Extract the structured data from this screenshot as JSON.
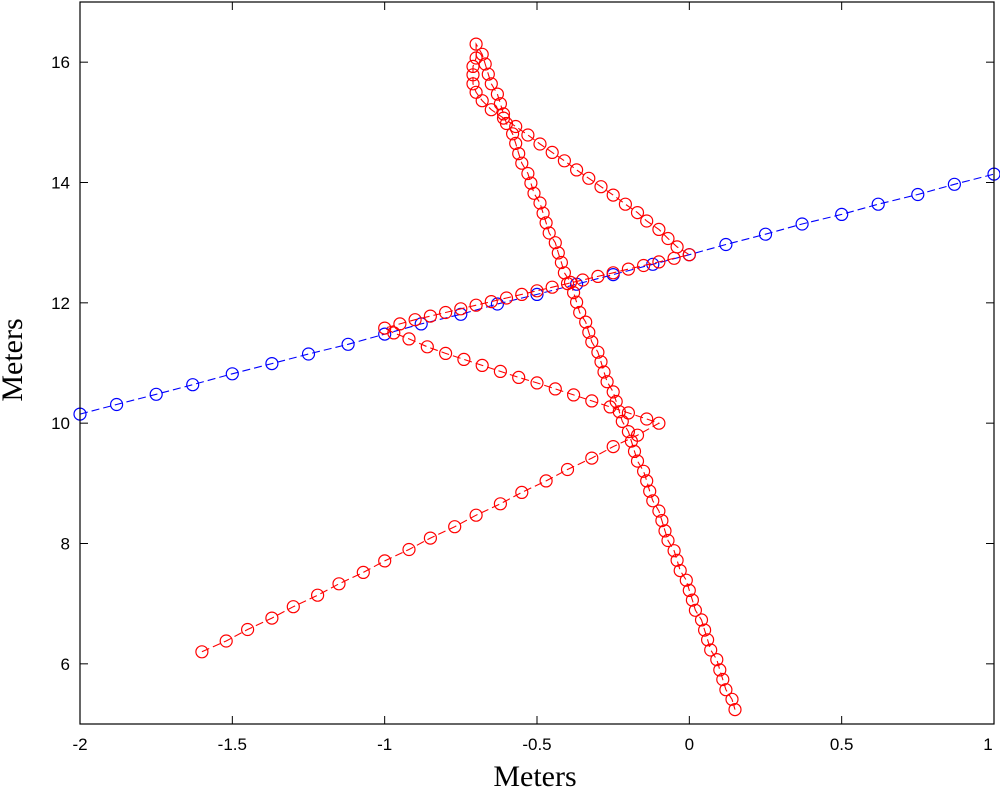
{
  "chart_data": {
    "type": "line",
    "title": "",
    "xlabel": "Meters",
    "ylabel": "Meters",
    "xlim": [
      -2,
      1
    ],
    "ylim": [
      5,
      17
    ],
    "xticks": [
      -2,
      -1.5,
      -1,
      -0.5,
      0,
      0.5,
      1
    ],
    "xtick_labels": [
      "-2",
      "-1.5",
      "-1",
      "-0.5",
      "0",
      "0.5",
      "1"
    ],
    "yticks": [
      6,
      8,
      10,
      12,
      14,
      16
    ],
    "ytick_labels": [
      "6",
      "8",
      "10",
      "12",
      "14",
      "16"
    ],
    "grid": false,
    "series": [
      {
        "color": "#0000ff",
        "marker": "circle",
        "linestyle": "dashed",
        "points": [
          [
            -2.0,
            10.15
          ],
          [
            -1.88,
            10.31
          ],
          [
            -1.75,
            10.48
          ],
          [
            -1.63,
            10.64
          ],
          [
            -1.5,
            10.82
          ],
          [
            -1.37,
            10.99
          ],
          [
            -1.25,
            11.15
          ],
          [
            -1.12,
            11.31
          ],
          [
            -1.0,
            11.48
          ],
          [
            -0.88,
            11.65
          ],
          [
            -0.75,
            11.81
          ],
          [
            -0.63,
            11.98
          ],
          [
            -0.5,
            12.14
          ],
          [
            -0.37,
            12.31
          ],
          [
            -0.25,
            12.47
          ],
          [
            -0.12,
            12.64
          ],
          [
            0.0,
            12.8
          ],
          [
            0.12,
            12.97
          ],
          [
            0.25,
            13.14
          ],
          [
            0.37,
            13.31
          ],
          [
            0.5,
            13.47
          ],
          [
            0.62,
            13.64
          ],
          [
            0.75,
            13.8
          ],
          [
            0.87,
            13.97
          ],
          [
            1.0,
            14.14
          ]
        ]
      },
      {
        "color": "#ff0000",
        "marker": "circle",
        "linestyle": "dashed",
        "points": [
          [
            -1.6,
            6.2
          ],
          [
            -1.52,
            6.38
          ],
          [
            -1.45,
            6.57
          ],
          [
            -1.37,
            6.76
          ],
          [
            -1.3,
            6.95
          ],
          [
            -1.22,
            7.14
          ],
          [
            -1.15,
            7.33
          ],
          [
            -1.07,
            7.52
          ],
          [
            -1.0,
            7.71
          ],
          [
            -0.92,
            7.9
          ],
          [
            -0.85,
            8.09
          ],
          [
            -0.77,
            8.28
          ],
          [
            -0.7,
            8.47
          ],
          [
            -0.62,
            8.66
          ],
          [
            -0.55,
            8.85
          ],
          [
            -0.47,
            9.04
          ],
          [
            -0.4,
            9.23
          ],
          [
            -0.32,
            9.42
          ],
          [
            -0.25,
            9.61
          ],
          [
            -0.17,
            9.8
          ],
          [
            -0.1,
            10.0
          ],
          [
            -0.14,
            10.07
          ],
          [
            -0.2,
            10.17
          ],
          [
            -0.26,
            10.27
          ],
          [
            -0.32,
            10.37
          ],
          [
            -0.38,
            10.47
          ],
          [
            -0.44,
            10.57
          ],
          [
            -0.5,
            10.67
          ],
          [
            -0.56,
            10.76
          ],
          [
            -0.62,
            10.86
          ],
          [
            -0.68,
            10.96
          ],
          [
            -0.74,
            11.06
          ],
          [
            -0.8,
            11.16
          ],
          [
            -0.86,
            11.27
          ],
          [
            -0.92,
            11.4
          ],
          [
            -0.97,
            11.5
          ],
          [
            -1.0,
            11.58
          ],
          [
            -0.95,
            11.65
          ],
          [
            -0.9,
            11.72
          ],
          [
            -0.85,
            11.78
          ],
          [
            -0.8,
            11.84
          ],
          [
            -0.75,
            11.9
          ],
          [
            -0.7,
            11.96
          ],
          [
            -0.65,
            12.02
          ],
          [
            -0.6,
            12.08
          ],
          [
            -0.55,
            12.14
          ],
          [
            -0.5,
            12.2
          ],
          [
            -0.45,
            12.26
          ],
          [
            -0.4,
            12.32
          ],
          [
            -0.35,
            12.38
          ],
          [
            -0.3,
            12.44
          ],
          [
            -0.25,
            12.5
          ],
          [
            -0.2,
            12.56
          ],
          [
            -0.15,
            12.62
          ],
          [
            -0.1,
            12.68
          ],
          [
            -0.05,
            12.74
          ],
          [
            0.0,
            12.8
          ],
          [
            -0.04,
            12.93
          ],
          [
            -0.07,
            13.07
          ],
          [
            -0.1,
            13.22
          ],
          [
            -0.14,
            13.36
          ],
          [
            -0.17,
            13.5
          ],
          [
            -0.21,
            13.64
          ],
          [
            -0.25,
            13.79
          ],
          [
            -0.29,
            13.93
          ],
          [
            -0.33,
            14.07
          ],
          [
            -0.37,
            14.21
          ],
          [
            -0.41,
            14.36
          ],
          [
            -0.45,
            14.5
          ],
          [
            -0.49,
            14.64
          ],
          [
            -0.53,
            14.79
          ],
          [
            -0.57,
            14.93
          ],
          [
            -0.61,
            15.07
          ],
          [
            -0.65,
            15.21
          ],
          [
            -0.68,
            15.36
          ],
          [
            -0.7,
            15.5
          ],
          [
            -0.71,
            15.64
          ],
          [
            -0.71,
            15.79
          ],
          [
            -0.71,
            15.93
          ],
          [
            -0.7,
            16.07
          ],
          [
            -0.7,
            16.3
          ],
          [
            -0.68,
            16.13
          ],
          [
            -0.67,
            15.97
          ],
          [
            -0.66,
            15.8
          ],
          [
            -0.65,
            15.64
          ],
          [
            -0.63,
            15.47
          ],
          [
            -0.62,
            15.31
          ],
          [
            -0.61,
            15.14
          ],
          [
            -0.6,
            14.98
          ],
          [
            -0.58,
            14.81
          ],
          [
            -0.57,
            14.65
          ],
          [
            -0.56,
            14.48
          ],
          [
            -0.55,
            14.32
          ],
          [
            -0.53,
            14.15
          ],
          [
            -0.52,
            13.99
          ],
          [
            -0.51,
            13.82
          ],
          [
            -0.49,
            13.66
          ],
          [
            -0.48,
            13.49
          ],
          [
            -0.47,
            13.33
          ],
          [
            -0.46,
            13.16
          ],
          [
            -0.44,
            13.0
          ],
          [
            -0.43,
            12.83
          ],
          [
            -0.42,
            12.67
          ],
          [
            -0.41,
            12.5
          ],
          [
            -0.39,
            12.34
          ],
          [
            -0.38,
            12.17
          ],
          [
            -0.37,
            12.01
          ],
          [
            -0.36,
            11.84
          ],
          [
            -0.34,
            11.68
          ],
          [
            -0.33,
            11.51
          ],
          [
            -0.32,
            11.35
          ],
          [
            -0.3,
            11.18
          ],
          [
            -0.29,
            11.02
          ],
          [
            -0.28,
            10.85
          ],
          [
            -0.27,
            10.69
          ],
          [
            -0.25,
            10.52
          ],
          [
            -0.24,
            10.36
          ],
          [
            -0.23,
            10.19
          ],
          [
            -0.22,
            10.03
          ],
          [
            -0.2,
            9.86
          ],
          [
            -0.19,
            9.7
          ],
          [
            -0.18,
            9.53
          ],
          [
            -0.17,
            9.37
          ],
          [
            -0.15,
            9.2
          ],
          [
            -0.14,
            9.04
          ],
          [
            -0.13,
            8.87
          ],
          [
            -0.12,
            8.71
          ],
          [
            -0.1,
            8.54
          ],
          [
            -0.09,
            8.38
          ],
          [
            -0.08,
            8.21
          ],
          [
            -0.07,
            8.05
          ],
          [
            -0.05,
            7.88
          ],
          [
            -0.04,
            7.72
          ],
          [
            -0.03,
            7.55
          ],
          [
            -0.01,
            7.39
          ],
          [
            0.0,
            7.22
          ],
          [
            0.01,
            7.06
          ],
          [
            0.02,
            6.89
          ],
          [
            0.04,
            6.73
          ],
          [
            0.05,
            6.56
          ],
          [
            0.06,
            6.4
          ],
          [
            0.07,
            6.23
          ],
          [
            0.09,
            6.07
          ],
          [
            0.1,
            5.9
          ],
          [
            0.11,
            5.74
          ],
          [
            0.12,
            5.57
          ],
          [
            0.14,
            5.41
          ],
          [
            0.15,
            5.24
          ]
        ]
      }
    ]
  }
}
